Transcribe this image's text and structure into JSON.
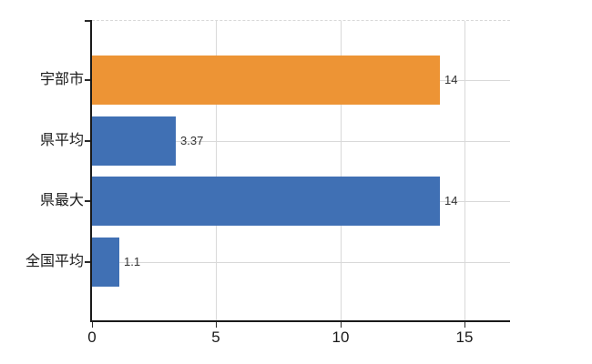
{
  "chart_data": {
    "type": "bar",
    "orientation": "horizontal",
    "title": "",
    "categories": [
      "宇部市",
      "県平均",
      "県最大",
      "全国平均"
    ],
    "values": [
      14,
      3.37,
      14,
      1.1
    ],
    "value_labels": [
      "14",
      "3.37",
      "14",
      "1.1"
    ],
    "series": [
      {
        "name": "値",
        "values": [
          14,
          3.37,
          14,
          1.1
        ]
      }
    ],
    "bar_colors": [
      "#ED9435",
      "#4070B4",
      "#4070B4",
      "#4070B4"
    ],
    "x_ticks": [
      0,
      5,
      10,
      15
    ],
    "x_tick_labels": [
      "0",
      "5",
      "10",
      "15"
    ],
    "xlim": [
      0,
      16.8
    ],
    "ylabel": "",
    "xlabel": "",
    "grid": "on",
    "legend_position": "none",
    "colors": {
      "background": "#FFFFFF",
      "axis": "#1A1A1A",
      "gridline": "#D9D9D9",
      "top_border_dashed": "#D8D8D8",
      "category_text": "#1A1A1A",
      "value_text": "#333333",
      "tick_text": "#1A1A1A"
    }
  }
}
